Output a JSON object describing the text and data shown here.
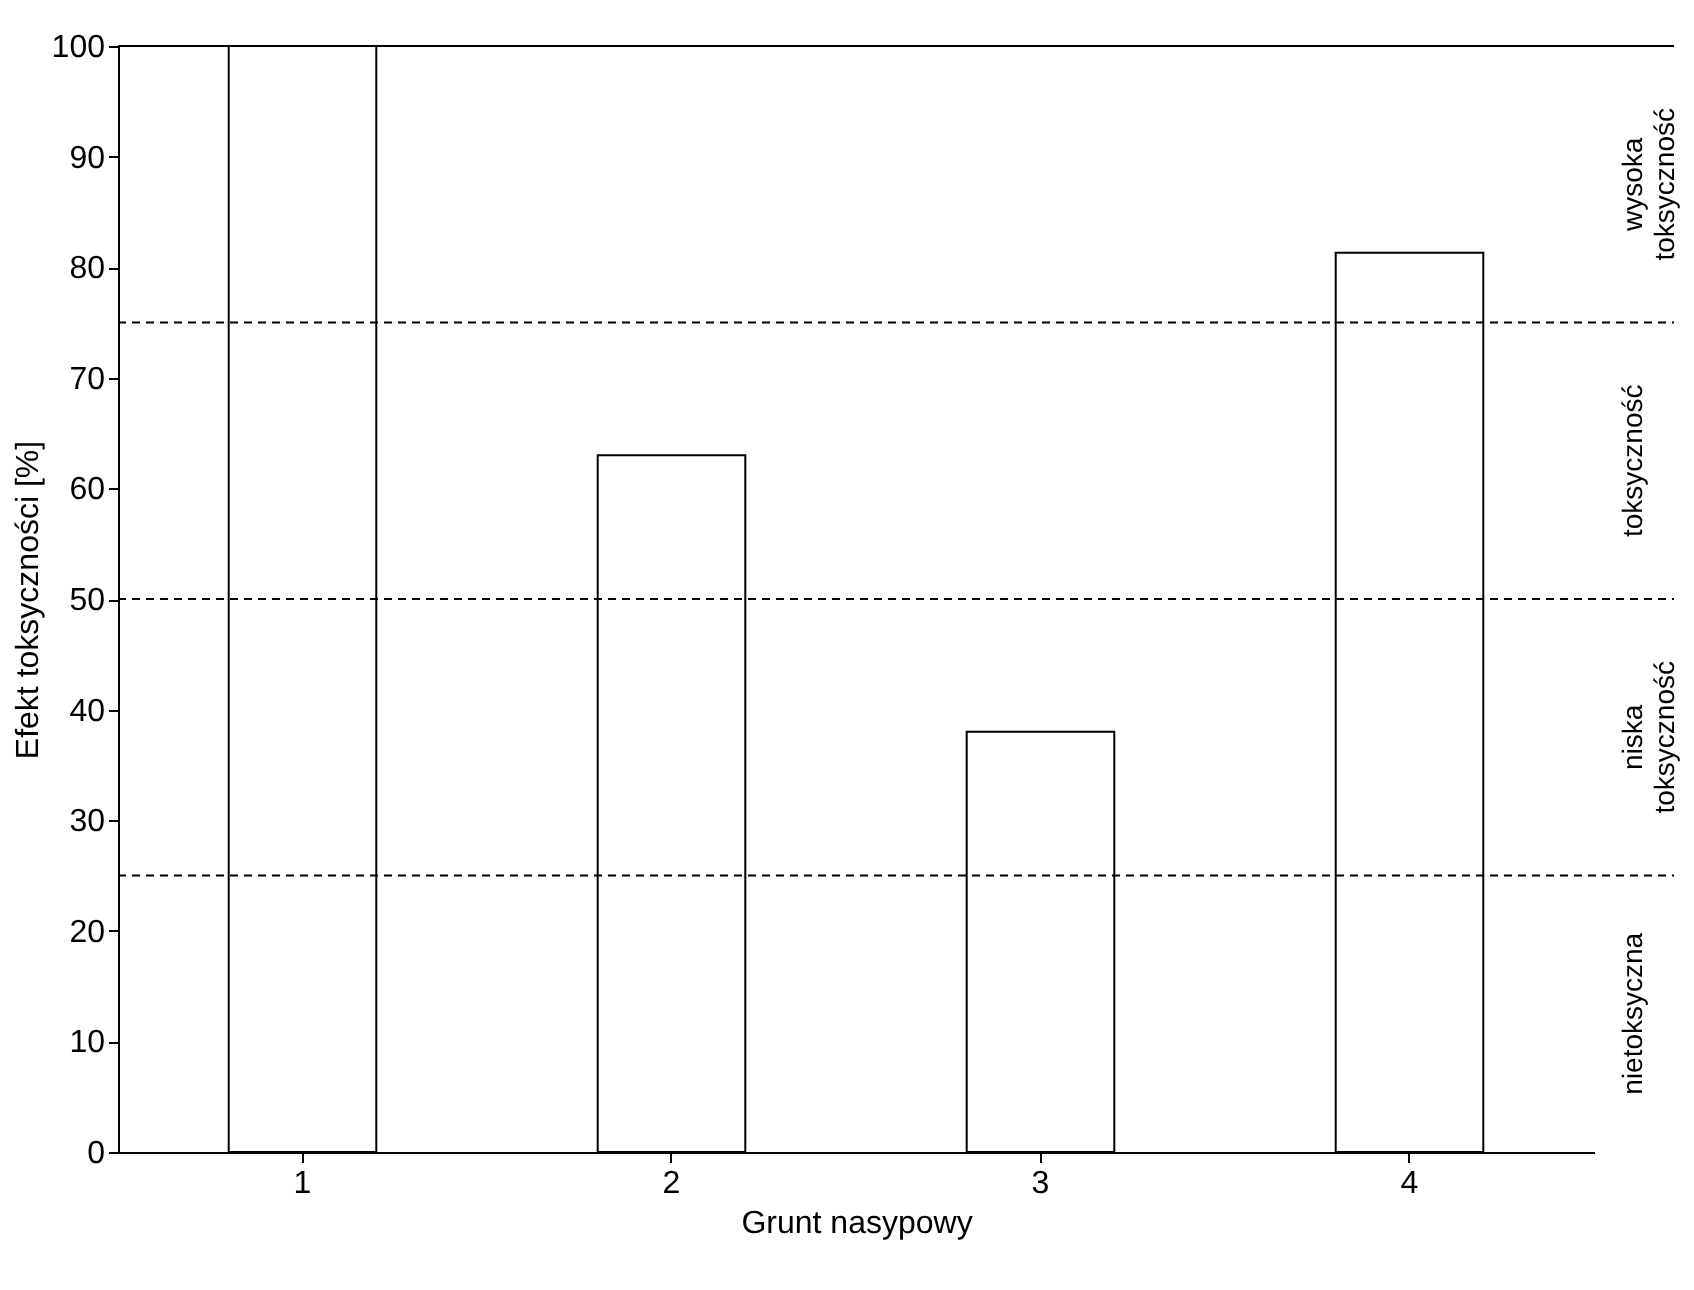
{
  "chart_data": {
    "type": "bar",
    "xlabel": "Grunt nasypowy",
    "ylabel": "Efekt toksyczności [%]",
    "categories": [
      "1",
      "2",
      "3",
      "4"
    ],
    "values": [
      100,
      63,
      38,
      81.3
    ],
    "color": "#ffffff",
    "ylim": [
      0,
      100
    ],
    "yticks": [
      0,
      10,
      20,
      30,
      40,
      50,
      60,
      70,
      80,
      90,
      100
    ],
    "grid": false,
    "ref_lines": [
      {
        "axis": "y",
        "value": 25,
        "line_style": "dashed",
        "color": "#000000"
      },
      {
        "axis": "y",
        "value": 50,
        "line_style": "dashed",
        "color": "#000000"
      },
      {
        "axis": "y",
        "value": 75,
        "line_style": "dashed",
        "color": "#000000"
      },
      {
        "axis": "y",
        "value": 100,
        "line_style": "solid",
        "color": "#000000"
      }
    ],
    "annotations": [
      "nietoksyczna",
      "niska toksyczność",
      "toksyczność",
      "wysoka toksyczność"
    ]
  }
}
